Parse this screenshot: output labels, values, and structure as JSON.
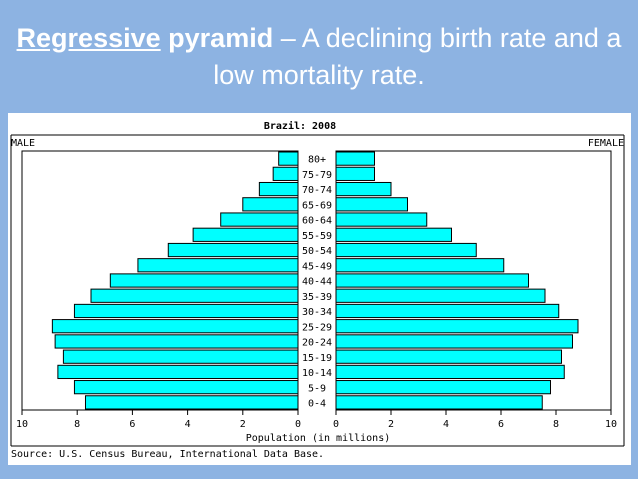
{
  "slide": {
    "title_underlined": "Regressive",
    "title_bold": " pyramid",
    "title_rest": " – A declining birth rate and a low mortality rate."
  },
  "colors": {
    "background": "#8db3e2",
    "bar_fill": "#00ffff",
    "bar_stroke": "#000000"
  },
  "chart_data": {
    "type": "bar",
    "orientation": "horizontal",
    "title": "Brazil: 2008",
    "left_label": "MALE",
    "right_label": "FEMALE",
    "xlabel": "Population (in millions)",
    "source": "Source: U.S. Census Bureau, International Data Base.",
    "xlim": [
      0,
      10
    ],
    "x_ticks": [
      "0",
      "2",
      "4",
      "6",
      "8",
      "10"
    ],
    "grid": false,
    "categories": [
      "80+",
      "75-79",
      "70-74",
      "65-69",
      "60-64",
      "55-59",
      "50-54",
      "45-49",
      "40-44",
      "35-39",
      "30-34",
      "25-29",
      "20-24",
      "15-19",
      "10-14",
      "5-9",
      "0-4"
    ],
    "series": [
      {
        "name": "MALE",
        "values": [
          0.7,
          0.9,
          1.4,
          2.0,
          2.8,
          3.8,
          4.7,
          5.8,
          6.8,
          7.5,
          8.1,
          8.9,
          8.8,
          8.5,
          8.7,
          8.1,
          7.7
        ]
      },
      {
        "name": "FEMALE",
        "values": [
          1.4,
          1.4,
          2.0,
          2.6,
          3.3,
          4.2,
          5.1,
          6.1,
          7.0,
          7.6,
          8.1,
          8.8,
          8.6,
          8.2,
          8.3,
          7.8,
          7.5
        ]
      }
    ]
  }
}
